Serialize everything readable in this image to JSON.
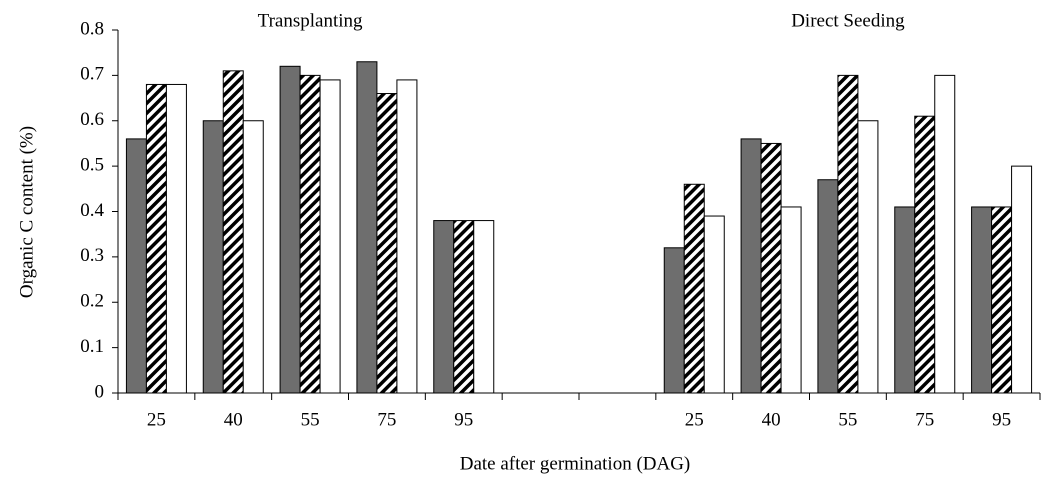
{
  "chart_data": {
    "type": "bar",
    "annotations": [
      "Transplanting",
      "Direct Seeding"
    ],
    "x_label": "Date after germination (DAG)",
    "y_label": "Organic C content (%)",
    "categories": [
      "25",
      "40",
      "55",
      "75",
      "95",
      null,
      null,
      "25",
      "40",
      "55",
      "75",
      "95"
    ],
    "series": [
      {
        "color": "#6e6e6e",
        "values": [
          0.56,
          0.6,
          0.72,
          0.73,
          0.38,
          null,
          null,
          0.32,
          0.56,
          0.47,
          0.41,
          0.41
        ]
      },
      {
        "color": "#000000",
        "pattern": "hatch",
        "values": [
          0.68,
          0.71,
          0.7,
          0.66,
          0.38,
          null,
          null,
          0.46,
          0.55,
          0.7,
          0.61,
          0.41
        ]
      },
      {
        "color": "#ffffff",
        "values": [
          0.68,
          0.6,
          0.69,
          0.69,
          0.38,
          null,
          null,
          0.39,
          0.41,
          0.6,
          0.7,
          0.5
        ]
      }
    ],
    "ylim": [
      0,
      0.8
    ],
    "yticks": [
      0,
      0.1,
      0.2,
      0.3,
      0.4,
      0.5,
      0.6,
      0.7,
      0.8
    ],
    "grid": false
  }
}
